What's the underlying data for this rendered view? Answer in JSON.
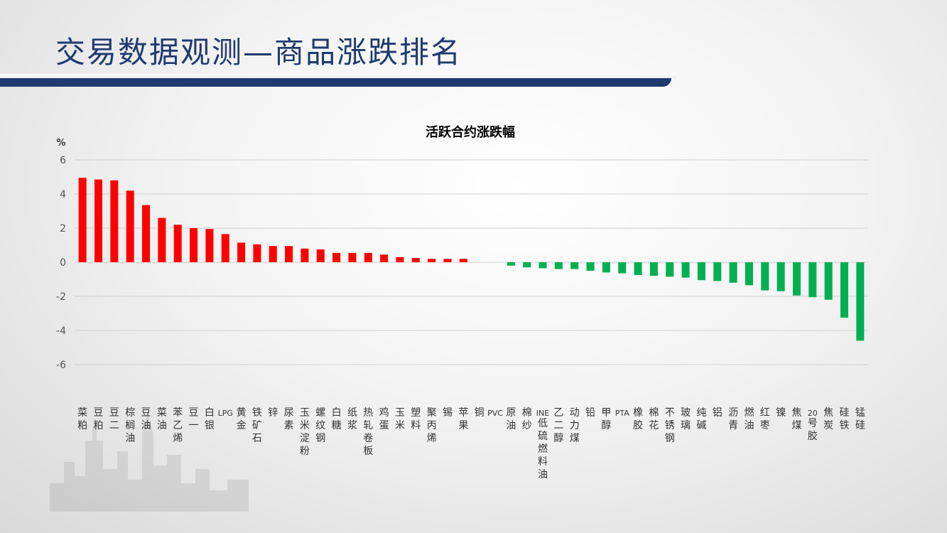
{
  "page": {
    "title": "交易数据观测—商品涨跌排名"
  },
  "chart_data": {
    "type": "bar",
    "title": "活跃合约涨跌幅",
    "ylabel": "%",
    "ylim": [
      -6,
      6
    ],
    "yticks": [
      6,
      4,
      2,
      0,
      -2,
      -4,
      -6
    ],
    "grid": true,
    "positive_color": "#ff0000",
    "negative_color": "#00b050",
    "categories": [
      "菜粕",
      "豆粕",
      "豆二",
      "棕榈油",
      "豆油",
      "菜油",
      "苯乙烯",
      "豆一",
      "白银",
      "LPG",
      "黄金",
      "铁矿石",
      "锌",
      "尿素",
      "玉米淀粉",
      "螺纹钢",
      "白糖",
      "纸浆",
      "热轧卷板",
      "鸡蛋",
      "玉米",
      "塑料",
      "聚丙烯",
      "锡",
      "苹果",
      "铜",
      "PVC",
      "原油",
      "棉纱",
      "INE低硫燃料油",
      "乙二醇",
      "动力煤",
      "铅",
      "甲醇",
      "PTA",
      "橡胶",
      "棉花",
      "不锈钢",
      "玻璃",
      "纯碱",
      "铝",
      "沥青",
      "燃油",
      "红枣",
      "镍",
      "焦煤",
      "20号胶",
      "焦炭",
      "硅铁",
      "锰硅"
    ],
    "values": [
      4.95,
      4.85,
      4.8,
      4.2,
      3.35,
      2.6,
      2.2,
      2.0,
      1.95,
      1.65,
      1.15,
      1.05,
      0.95,
      0.95,
      0.8,
      0.75,
      0.55,
      0.55,
      0.55,
      0.45,
      0.3,
      0.25,
      0.2,
      0.2,
      0.2,
      0.0,
      0.0,
      -0.2,
      -0.3,
      -0.35,
      -0.4,
      -0.4,
      -0.5,
      -0.6,
      -0.65,
      -0.75,
      -0.8,
      -0.85,
      -0.9,
      -1.05,
      -1.1,
      -1.2,
      -1.35,
      -1.65,
      -1.7,
      -1.95,
      -2.05,
      -2.2,
      -3.25,
      -4.6
    ]
  }
}
